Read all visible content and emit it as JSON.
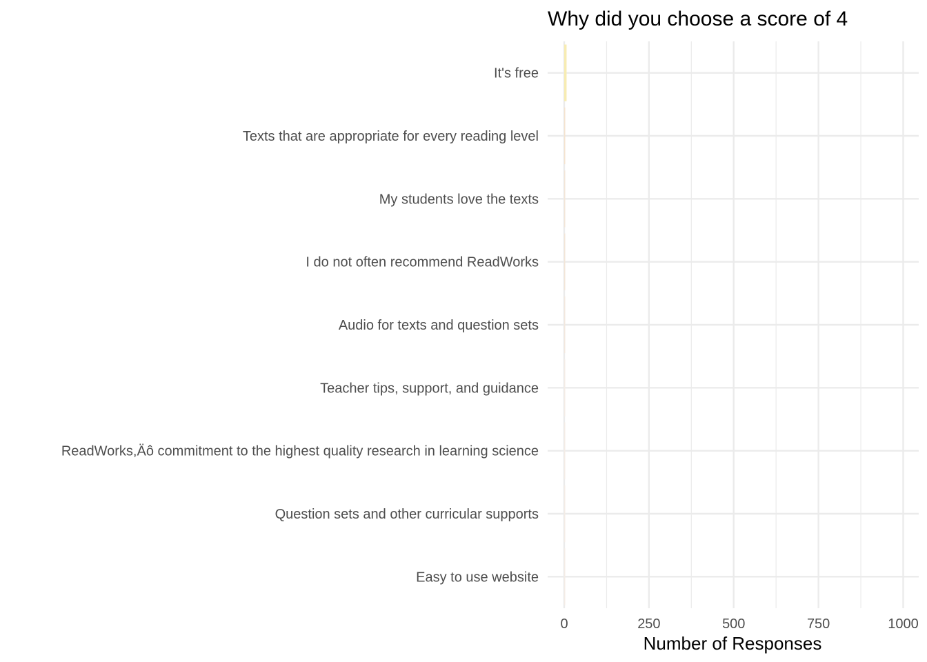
{
  "chart_data": {
    "type": "bar",
    "orientation": "horizontal",
    "title": "Why did you choose a score of 4",
    "xlabel": "Number of Responses",
    "ylabel": "",
    "categories": [
      "It's free",
      "Texts that are appropriate for every reading level",
      "My students love the texts",
      "I do not often recommend ReadWorks",
      "Audio for texts and question sets",
      "Teacher tips, support, and guidance",
      "ReadWorks,Äô commitment to the highest quality research in learning science",
      "Question sets and other curricular supports",
      "Easy to use website"
    ],
    "values": [
      7,
      3,
      3,
      2,
      2,
      1,
      1,
      1,
      1
    ],
    "bar_colors": [
      "#f7ecb3",
      "#f5e3cf",
      "#f3e6d8",
      "#f3e6d8",
      "#f3e8de",
      "#f4ece6",
      "#f4ece6",
      "#f4ece6",
      "#f4ece6"
    ],
    "xlim": [
      0,
      1040
    ],
    "xticks": [
      0,
      250,
      500,
      750,
      1000
    ],
    "xtick_labels": [
      "0",
      "250",
      "500",
      "750",
      "1000"
    ],
    "grid": true,
    "legend": "none"
  }
}
